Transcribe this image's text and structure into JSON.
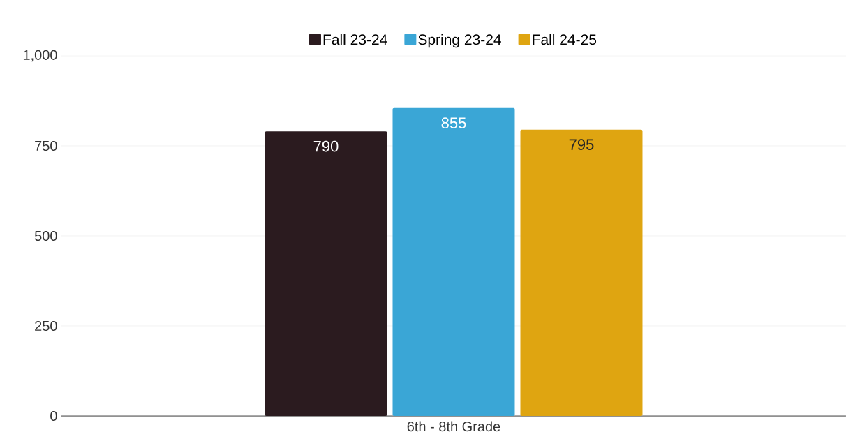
{
  "chart_data": {
    "type": "bar",
    "categories": [
      "6th - 8th Grade"
    ],
    "series": [
      {
        "name": "Fall 23-24",
        "color": "#2b1b1f",
        "values": [
          790
        ]
      },
      {
        "name": "Spring 23-24",
        "color": "#3aa6d6",
        "values": [
          855
        ]
      },
      {
        "name": "Fall 24-25",
        "color": "#dfa511",
        "values": [
          795
        ]
      }
    ],
    "ylim": [
      0,
      1000
    ],
    "yticks": [
      0,
      250,
      500,
      750,
      {
        "value": 1000,
        "label": "1,000"
      }
    ],
    "grid": "y",
    "legend": "top",
    "data_labels": true
  }
}
